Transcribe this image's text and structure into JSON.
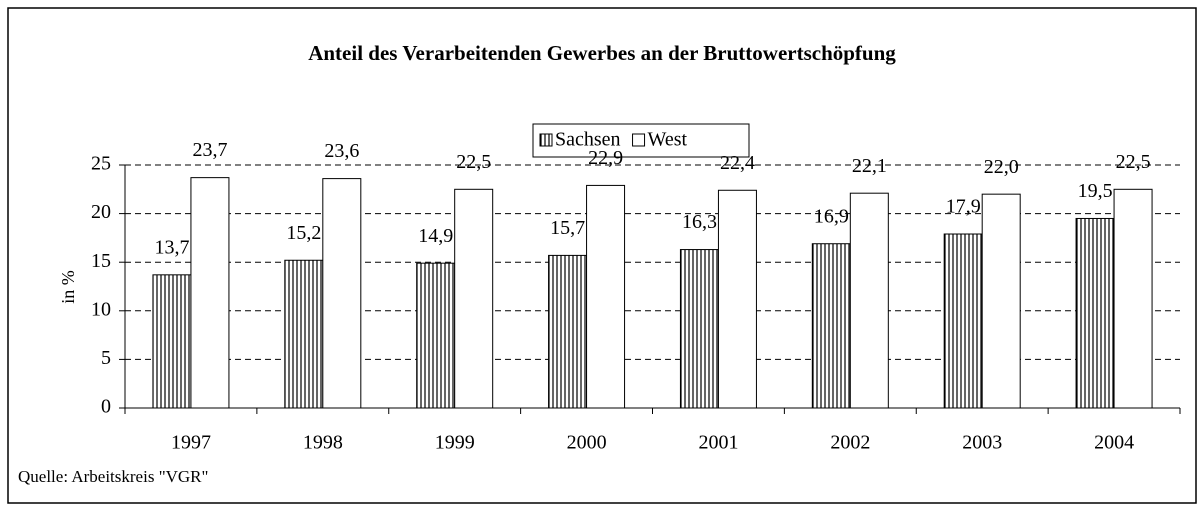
{
  "chart_data": {
    "type": "bar",
    "title": "Anteil des Verarbeitenden Gewerbes an der Bruttowertschöpfung",
    "y_label": "in %",
    "source": "Quelle: Arbeitskreis \"VGR\"",
    "categories": [
      "1997",
      "1998",
      "1999",
      "2000",
      "2001",
      "2002",
      "2003",
      "2004"
    ],
    "series": [
      {
        "name": "Sachsen",
        "color": "#000000",
        "hatch": true,
        "values": [
          13.7,
          15.2,
          14.9,
          15.7,
          16.3,
          16.9,
          17.9,
          19.5
        ],
        "value_labels": [
          "13,7",
          "15,2",
          "14,9",
          "15,7",
          "16,3",
          "16,9",
          "17,9",
          "19,5"
        ]
      },
      {
        "name": "West",
        "color": "#ffffff",
        "hatch": false,
        "values": [
          23.7,
          23.6,
          22.5,
          22.9,
          22.4,
          22.1,
          22.0,
          22.5
        ],
        "value_labels": [
          "23,7",
          "23,6",
          "22,5",
          "22,9",
          "22,4",
          "22,1",
          "22,0",
          "22,5"
        ]
      }
    ],
    "ylim": [
      0,
      25
    ],
    "yticks": [
      0,
      5,
      10,
      15,
      20,
      25
    ],
    "grid": true,
    "legend": "top"
  }
}
